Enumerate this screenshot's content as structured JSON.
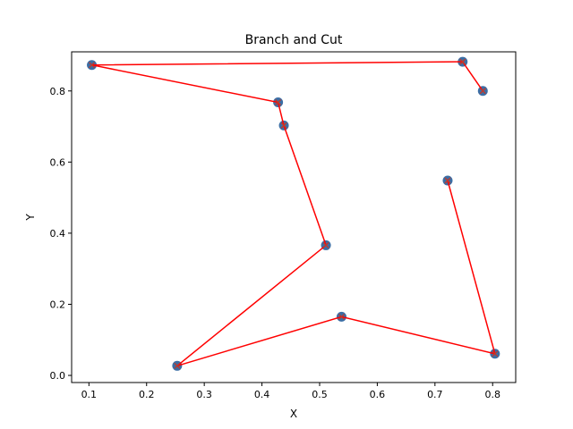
{
  "chart_data": {
    "type": "line",
    "title": "Branch and Cut",
    "xlabel": "X",
    "ylabel": "Y",
    "xlim": [
      0.07,
      0.84
    ],
    "ylim": [
      -0.02,
      0.91
    ],
    "xticks": [
      0.1,
      0.2,
      0.3,
      0.4,
      0.5,
      0.6,
      0.7,
      0.8
    ],
    "xtick_labels": [
      "0.1",
      "0.2",
      "0.3",
      "0.4",
      "0.5",
      "0.6",
      "0.7",
      "0.8"
    ],
    "yticks": [
      0.0,
      0.2,
      0.4,
      0.6,
      0.8
    ],
    "ytick_labels": [
      "0.0",
      "0.2",
      "0.4",
      "0.6",
      "0.8"
    ],
    "grid": false,
    "points": [
      {
        "x": 0.105,
        "y": 0.873
      },
      {
        "x": 0.748,
        "y": 0.882
      },
      {
        "x": 0.783,
        "y": 0.8
      },
      {
        "x": 0.428,
        "y": 0.768
      },
      {
        "x": 0.438,
        "y": 0.703
      },
      {
        "x": 0.722,
        "y": 0.548
      },
      {
        "x": 0.511,
        "y": 0.366
      },
      {
        "x": 0.538,
        "y": 0.165
      },
      {
        "x": 0.804,
        "y": 0.061
      },
      {
        "x": 0.253,
        "y": 0.027
      }
    ],
    "route": [
      {
        "x": 0.722,
        "y": 0.548
      },
      {
        "x": 0.804,
        "y": 0.061
      },
      {
        "x": 0.538,
        "y": 0.165
      },
      {
        "x": 0.253,
        "y": 0.027
      },
      {
        "x": 0.511,
        "y": 0.366
      },
      {
        "x": 0.438,
        "y": 0.703
      },
      {
        "x": 0.428,
        "y": 0.768
      },
      {
        "x": 0.105,
        "y": 0.873
      },
      {
        "x": 0.748,
        "y": 0.882
      },
      {
        "x": 0.783,
        "y": 0.8
      }
    ],
    "colors": {
      "points": "#3b6ea5",
      "route": "#ff0000",
      "markers": "#c0392b"
    }
  }
}
